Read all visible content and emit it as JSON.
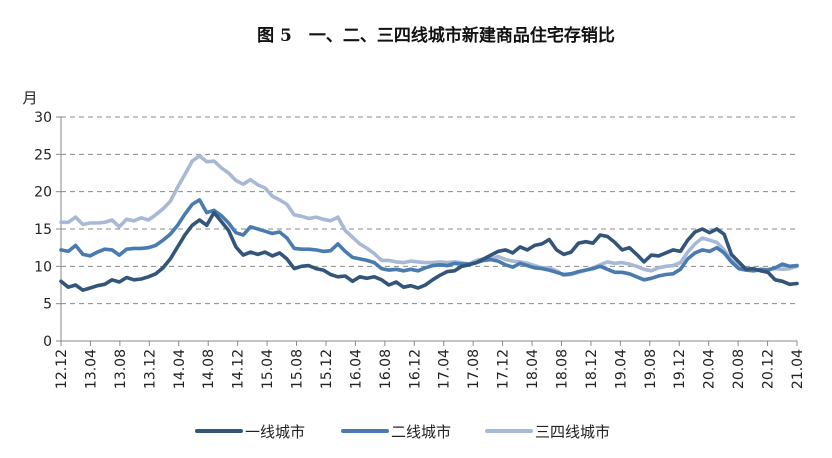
{
  "chart_data": {
    "type": "line",
    "title": "图 5　一、二、三四线城市新建商品住宅存销比",
    "ylabel": "月",
    "xlabel": "",
    "ylim": [
      0,
      30
    ],
    "yticks": [
      0,
      5,
      10,
      15,
      20,
      25,
      30
    ],
    "grid": true,
    "legend": "bottom",
    "xticks": [
      "12.12",
      "13.04",
      "13.08",
      "13.12",
      "14.04",
      "14.08",
      "14.12",
      "15.04",
      "15.08",
      "15.12",
      "16.04",
      "16.08",
      "16.12",
      "17.04",
      "17.08",
      "17.12",
      "18.04",
      "18.08",
      "18.12",
      "19.04",
      "19.08",
      "19.12",
      "20.04",
      "20.08",
      "20.12",
      "21.04"
    ],
    "series": [
      {
        "name": "一线城市",
        "color": "#34557a",
        "values": [
          8.0,
          7.2,
          7.5,
          6.8,
          7.1,
          7.4,
          7.6,
          8.2,
          7.9,
          8.5,
          8.2,
          8.3,
          8.6,
          9.0,
          9.8,
          11.0,
          12.6,
          14.2,
          15.5,
          16.2,
          15.5,
          17.2,
          16.0,
          14.8,
          12.6,
          11.5,
          11.9,
          11.6,
          11.9,
          11.4,
          11.8,
          11.0,
          9.7,
          10.0,
          10.1,
          9.7,
          9.5,
          8.9,
          8.6,
          8.7,
          8.0,
          8.6,
          8.4,
          8.6,
          8.2,
          7.5,
          7.9,
          7.2,
          7.4,
          7.1,
          7.5,
          8.2,
          8.8,
          9.3,
          9.4,
          10.0,
          10.2,
          10.5,
          11.0,
          11.5,
          12.0,
          12.2,
          11.8,
          12.6,
          12.2,
          12.8,
          13.0,
          13.6,
          12.2,
          11.6,
          11.9,
          13.1,
          13.3,
          13.1,
          14.2,
          14.0,
          13.2,
          12.2,
          12.5,
          11.6,
          10.6,
          11.5,
          11.4,
          11.8,
          12.2,
          12.0,
          13.5,
          14.6,
          15.0,
          14.5,
          15.0,
          14.3,
          11.6,
          10.6,
          9.6,
          9.7,
          9.4,
          9.2,
          8.2,
          8.0,
          7.6,
          7.7
        ]
      },
      {
        "name": "二线城市",
        "color": "#4a7bb0",
        "values": [
          12.2,
          12.0,
          12.8,
          11.6,
          11.4,
          11.9,
          12.3,
          12.2,
          11.5,
          12.3,
          12.4,
          12.4,
          12.5,
          12.8,
          13.5,
          14.3,
          15.5,
          17.0,
          18.3,
          18.9,
          17.2,
          17.5,
          16.8,
          15.8,
          14.5,
          14.2,
          15.3,
          15.0,
          14.7,
          14.4,
          14.6,
          13.8,
          12.4,
          12.3,
          12.3,
          12.2,
          12.0,
          12.1,
          13.0,
          12.0,
          11.2,
          11.0,
          10.8,
          10.5,
          9.7,
          9.5,
          9.6,
          9.4,
          9.6,
          9.4,
          9.8,
          10.1,
          10.2,
          10.1,
          10.4,
          10.3,
          10.3,
          10.5,
          10.8,
          10.9,
          10.7,
          10.2,
          9.9,
          10.4,
          10.1,
          9.8,
          9.7,
          9.5,
          9.2,
          8.9,
          9.0,
          9.3,
          9.5,
          9.7,
          10.0,
          9.6,
          9.2,
          9.2,
          9.0,
          8.6,
          8.2,
          8.4,
          8.7,
          8.9,
          9.0,
          9.6,
          11.0,
          11.8,
          12.2,
          12.0,
          12.5,
          11.8,
          10.6,
          9.7,
          9.5,
          9.4,
          9.6,
          9.5,
          9.8,
          10.3,
          10.0,
          10.1
        ]
      },
      {
        "name": "三四线城市",
        "color": "#a8b9d6",
        "values": [
          15.9,
          15.9,
          16.6,
          15.6,
          15.8,
          15.8,
          15.9,
          16.2,
          15.3,
          16.3,
          16.1,
          16.5,
          16.2,
          16.9,
          17.7,
          18.7,
          20.6,
          22.3,
          24.1,
          24.8,
          24.0,
          24.1,
          23.2,
          22.5,
          21.5,
          21.0,
          21.6,
          20.9,
          20.5,
          19.4,
          18.9,
          18.3,
          16.9,
          16.7,
          16.4,
          16.6,
          16.3,
          16.1,
          16.6,
          14.8,
          13.9,
          13.0,
          12.4,
          11.7,
          10.8,
          10.8,
          10.6,
          10.5,
          10.7,
          10.6,
          10.5,
          10.5,
          10.6,
          10.5,
          10.6,
          10.5,
          10.3,
          10.8,
          11.0,
          11.0,
          11.3,
          10.9,
          10.7,
          10.6,
          10.4,
          10.1,
          9.8,
          9.8,
          9.4,
          8.8,
          8.9,
          9.2,
          9.5,
          9.8,
          10.2,
          10.6,
          10.4,
          10.5,
          10.3,
          10.0,
          9.6,
          9.4,
          9.8,
          10.0,
          10.1,
          10.5,
          11.9,
          13.0,
          13.8,
          13.5,
          13.2,
          12.2,
          10.8,
          10.1,
          9.7,
          9.4,
          9.5,
          9.6,
          9.7,
          9.6,
          9.7,
          10.0
        ]
      }
    ]
  }
}
